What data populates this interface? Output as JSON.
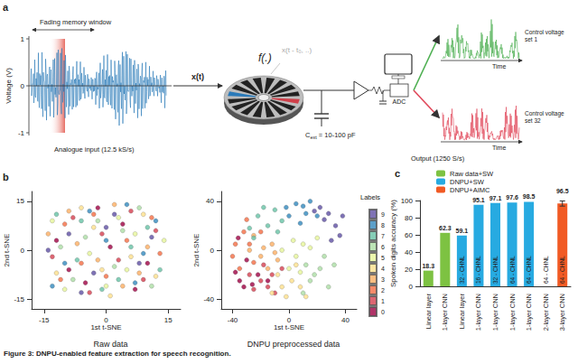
{
  "panel_labels": [
    "a",
    "b",
    "c"
  ],
  "caption": "Figure 3: DNPU-enabled feature extraction for speech recognition.",
  "diagram": {
    "fading_memory": "Fading memory window",
    "y_label": "Voltage (V)",
    "yticks": [
      -1,
      0,
      1
    ],
    "input_color": "#2a7ab9",
    "input_label": "Analogue input (12.5 kS/s)",
    "input_symbol": "x(t)",
    "function_symbol": "f(.)",
    "delayed_symbol": "x(t - t₀, ..)",
    "cap_symbol": "C",
    "cap_subscript": "ext",
    "cap_value": " = 10-100 pF",
    "adc": "ADC",
    "output_label": "Output (1250 S/s)",
    "outputs": [
      {
        "label": "Control voltage set 1",
        "time": "Time",
        "color": "#4caf50"
      },
      {
        "label": "Control voltage set 32",
        "time": "Time",
        "color": "#e0485a"
      }
    ]
  },
  "chart_data": [
    {
      "type": "scatter",
      "title": "Raw data",
      "x_label": "1st t-SNE",
      "y_label": "2nd t-SNE",
      "xlim": [
        -18,
        18
      ],
      "xticks": [
        -15,
        0,
        15
      ],
      "ylim": [
        -18,
        18
      ],
      "yticks": [
        -15,
        0,
        15
      ],
      "grid": false,
      "series": [
        {
          "name": "0",
          "color": "#9e0142",
          "values": [
            [
              -12,
              3
            ],
            [
              -5,
              -10
            ],
            [
              4,
              8
            ],
            [
              10,
              -4
            ],
            [
              -2,
              13
            ],
            [
              7,
              -12
            ],
            [
              -9,
              -6
            ],
            [
              1,
              1
            ]
          ]
        },
        {
          "name": "1",
          "color": "#d53e4f",
          "values": [
            [
              -8,
              10
            ],
            [
              3,
              -3
            ],
            [
              12,
              6
            ],
            [
              -13,
              -2
            ],
            [
              6,
              12
            ],
            [
              -4,
              -13
            ],
            [
              9,
              -9
            ],
            [
              -1,
              5
            ]
          ]
        },
        {
          "name": "2",
          "color": "#f46d43",
          "values": [
            [
              5,
              3
            ],
            [
              -10,
              8
            ],
            [
              -6,
              -4
            ],
            [
              11,
              10
            ],
            [
              0,
              -8
            ],
            [
              13,
              -1
            ],
            [
              -3,
              11
            ],
            [
              -11,
              -9
            ]
          ]
        },
        {
          "name": "3",
          "color": "#fdae61",
          "values": [
            [
              -7,
              2
            ],
            [
              8,
              -7
            ],
            [
              2,
              14
            ],
            [
              -14,
              5
            ],
            [
              4,
              -11
            ],
            [
              10,
              1
            ],
            [
              -2,
              -3
            ],
            [
              -9,
              12
            ]
          ]
        },
        {
          "name": "4",
          "color": "#fee08b",
          "values": [
            [
              6,
              -2
            ],
            [
              -3,
              7
            ],
            [
              -12,
              -7
            ],
            [
              1,
              -14
            ],
            [
              9,
              11
            ],
            [
              -6,
              13
            ],
            [
              12,
              -8
            ],
            [
              -1,
              -6
            ]
          ]
        },
        {
          "name": "5",
          "color": "#e6f598",
          "values": [
            [
              -4,
              -1
            ],
            [
              7,
              5
            ],
            [
              -10,
              -12
            ],
            [
              3,
              10
            ],
            [
              14,
              3
            ],
            [
              -13,
              9
            ],
            [
              0,
              -11
            ],
            [
              5,
              -6
            ]
          ]
        },
        {
          "name": "6",
          "color": "#abdda4",
          "values": [
            [
              2,
              -5
            ],
            [
              -8,
              -9
            ],
            [
              11,
              -11
            ],
            [
              -5,
              4
            ],
            [
              8,
              13
            ],
            [
              -11,
              1
            ],
            [
              4,
              6
            ],
            [
              -2,
              9
            ]
          ]
        },
        {
          "name": "7",
          "color": "#66c2a5",
          "values": [
            [
              -6,
              9
            ],
            [
              10,
              7
            ],
            [
              -1,
              -12
            ],
            [
              6,
              1
            ],
            [
              -12,
              11
            ],
            [
              13,
              -6
            ],
            [
              -7,
              -3
            ],
            [
              3,
              -9
            ]
          ]
        },
        {
          "name": "8",
          "color": "#3288bd",
          "values": [
            [
              9,
              -1
            ],
            [
              -4,
              12
            ],
            [
              0,
              3
            ],
            [
              -10,
              -4
            ],
            [
              5,
              14
            ],
            [
              -13,
              -11
            ],
            [
              12,
              9
            ],
            [
              7,
              -10
            ]
          ]
        },
        {
          "name": "9",
          "color": "#5e4fa2",
          "values": [
            [
              -3,
              -7
            ],
            [
              11,
              4
            ],
            [
              -9,
              5
            ],
            [
              2,
              11
            ],
            [
              -6,
              -13
            ],
            [
              8,
              -4
            ],
            [
              -14,
              0
            ],
            [
              0,
              7
            ]
          ]
        }
      ]
    },
    {
      "type": "scatter",
      "title": "DNPU preprocessed data",
      "x_label": "1st t-SNE",
      "y_label": "2nd t-SNE",
      "xlim": [
        -48,
        48
      ],
      "xticks": [
        -40,
        0,
        40
      ],
      "ylim": [
        -48,
        48
      ],
      "yticks": [
        -40,
        0,
        40
      ],
      "grid": false,
      "legend": "right",
      "legend_title": "Labels",
      "series": [
        {
          "name": "0",
          "color": "#9e0142",
          "values": [
            [
              -35,
              -25
            ],
            [
              -30,
              -8
            ],
            [
              -38,
              -18
            ],
            [
              -22,
              -20
            ],
            [
              -32,
              -30
            ],
            [
              -26,
              -28
            ],
            [
              -36,
              10
            ],
            [
              -15,
              -25
            ]
          ]
        },
        {
          "name": "1",
          "color": "#d53e4f",
          "values": [
            [
              -20,
              -25
            ],
            [
              -12,
              -20
            ],
            [
              -28,
              -20
            ],
            [
              -15,
              -30
            ],
            [
              -5,
              -15
            ],
            [
              -25,
              -32
            ],
            [
              -18,
              -12
            ],
            [
              -10,
              -35
            ]
          ]
        },
        {
          "name": "2",
          "color": "#f46d43",
          "values": [
            [
              -32,
              15
            ],
            [
              -38,
              5
            ],
            [
              -25,
              -10
            ],
            [
              -35,
              -15
            ],
            [
              -30,
              25
            ],
            [
              -20,
              15
            ],
            [
              -40,
              -5
            ],
            [
              -28,
              5
            ]
          ]
        },
        {
          "name": "3",
          "color": "#fdae61",
          "values": [
            [
              -20,
              -5
            ],
            [
              -12,
              5
            ],
            [
              -28,
              0
            ],
            [
              -15,
              -15
            ],
            [
              -8,
              -8
            ],
            [
              -25,
              12
            ],
            [
              -18,
              2
            ],
            [
              -10,
              -2
            ]
          ]
        },
        {
          "name": "4",
          "color": "#fee08b",
          "values": [
            [
              -5,
              -30
            ],
            [
              2,
              -25
            ],
            [
              -12,
              -35
            ],
            [
              8,
              -30
            ],
            [
              -2,
              -38
            ],
            [
              5,
              -12
            ],
            [
              -8,
              -20
            ],
            [
              12,
              -38
            ]
          ]
        },
        {
          "name": "5",
          "color": "#e6f598",
          "values": [
            [
              5,
              -5
            ],
            [
              10,
              5
            ],
            [
              0,
              -15
            ],
            [
              15,
              2
            ],
            [
              -5,
              0
            ],
            [
              8,
              -18
            ],
            [
              20,
              10
            ],
            [
              3,
              8
            ]
          ]
        },
        {
          "name": "6",
          "color": "#abdda4",
          "values": [
            [
              15,
              -25
            ],
            [
              22,
              -15
            ],
            [
              28,
              -30
            ],
            [
              10,
              -35
            ],
            [
              25,
              -5
            ],
            [
              18,
              -20
            ],
            [
              32,
              -12
            ],
            [
              12,
              -12
            ]
          ]
        },
        {
          "name": "7",
          "color": "#66c2a5",
          "values": [
            [
              -22,
              28
            ],
            [
              -15,
              20
            ],
            [
              -10,
              33
            ],
            [
              -28,
              18
            ],
            [
              -5,
              24
            ],
            [
              -18,
              35
            ],
            [
              -25,
              10
            ],
            [
              -8,
              15
            ]
          ]
        },
        {
          "name": "8",
          "color": "#3288bd",
          "values": [
            [
              5,
              38
            ],
            [
              12,
              30
            ],
            [
              -2,
              35
            ],
            [
              15,
              40
            ],
            [
              8,
              22
            ],
            [
              20,
              28
            ],
            [
              0,
              28
            ],
            [
              10,
              36
            ]
          ]
        },
        {
          "name": "9",
          "color": "#5e4fa2",
          "values": [
            [
              28,
              30
            ],
            [
              33,
              20
            ],
            [
              22,
              35
            ],
            [
              36,
              12
            ],
            [
              25,
              25
            ],
            [
              30,
              8
            ],
            [
              18,
              32
            ],
            [
              38,
              28
            ]
          ]
        }
      ]
    },
    {
      "type": "bar",
      "y_label": "Spoken digits accuracy (%)",
      "categories": [
        "Linear layer",
        "1-layer CNN",
        "Linear layer",
        "1-layer CNN",
        "1-layer CNN",
        "1-layer CNN",
        "1-layer CNN",
        "2-layer CNN",
        "3-layer CNN"
      ],
      "inner_labels": [
        null,
        null,
        "32 - CHNL",
        "16 - CHNL",
        "32 - CHNL",
        "64 - CHNL",
        "64 - CHNL",
        "64 - CHNL",
        "64 - CHNL"
      ],
      "ylim": [
        0,
        100
      ],
      "yticks": [
        0,
        20,
        40,
        60,
        80,
        100
      ],
      "grid": false,
      "legend": "upper left",
      "data_labels": true,
      "series": [
        {
          "name": "Raw data+SW",
          "color": "#7dc242",
          "values": [
            18.3,
            62.3,
            null,
            null,
            null,
            null,
            null,
            null,
            null
          ]
        },
        {
          "name": "DNPU+SW",
          "color": "#27aae1",
          "values": [
            null,
            null,
            59.1,
            95.1,
            97.1,
            97.6,
            98.5,
            null,
            null
          ]
        },
        {
          "name": "DNPU+AIMC",
          "color": "#f15a24",
          "values": [
            null,
            null,
            null,
            null,
            null,
            null,
            null,
            null,
            96.5
          ],
          "errors": [
            null,
            null,
            null,
            null,
            null,
            null,
            null,
            null,
            3
          ]
        }
      ]
    }
  ]
}
